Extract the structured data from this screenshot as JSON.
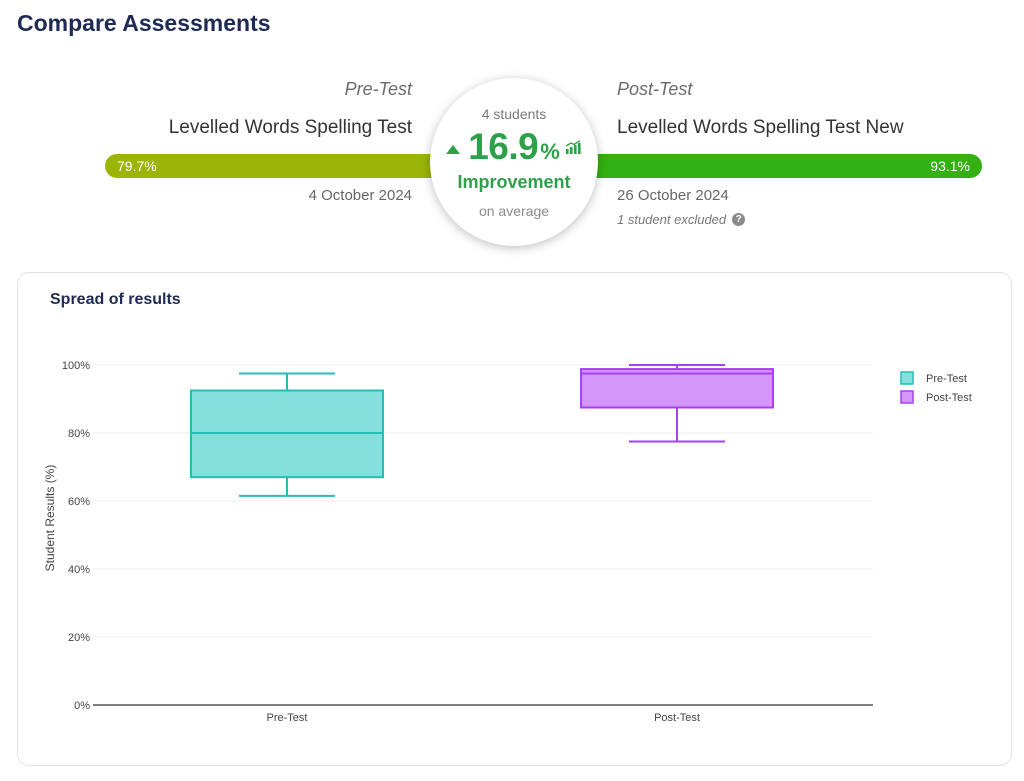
{
  "page_title": "Compare Assessments",
  "pre": {
    "label": "Pre-Test",
    "test_name": "Levelled Words Spelling Test",
    "score": "79.7%",
    "date": "4 October 2024",
    "color": "#9bb506"
  },
  "post": {
    "label": "Post-Test",
    "test_name": "Levelled Words Spelling Test New",
    "score": "93.1%",
    "date": "26 October 2024",
    "excluded_note": "1 student excluded",
    "color": "#33b012"
  },
  "summary": {
    "students": "4 students",
    "improvement_value": "16.9",
    "improvement_unit": "%",
    "improvement_label": "Improvement",
    "average_label": "on average",
    "direction_icon": "arrow-up-icon",
    "trend_icon": "bar-chart-trend-icon",
    "accent": "#2fa04a"
  },
  "card": {
    "title": "Spread of results"
  },
  "chart_data": {
    "type": "box",
    "categories": [
      "Pre-Test",
      "Post-Test"
    ],
    "ylabel": "Student Results (%)",
    "xlabel": "",
    "ylim": [
      0,
      100
    ],
    "yticks": [
      "0%",
      "20%",
      "40%",
      "60%",
      "80%",
      "100%"
    ],
    "legend_position": "top-right",
    "grid": true,
    "series": [
      {
        "name": "Pre-Test",
        "min": 61.5,
        "q1": 67,
        "median": 80,
        "q3": 92.5,
        "max": 97.5,
        "fill": "#85dfdc",
        "stroke": "#26bdb5"
      },
      {
        "name": "Post-Test",
        "min": 77.5,
        "q1": 87.5,
        "median": 97.5,
        "q3": 98.8,
        "max": 100,
        "fill": "#d596fa",
        "stroke": "#a640f0"
      }
    ]
  }
}
